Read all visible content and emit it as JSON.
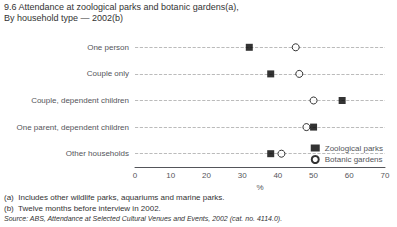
{
  "chart_data": {
    "type": "dot",
    "orientation": "horizontal",
    "title": "9.6 Attendance at zoological parks and botanic gardens(a),",
    "subtitle": "By household type — 2002(b)",
    "categories": [
      "One person",
      "Couple only",
      "Couple, dependent children",
      "One parent, dependent children",
      "Other households"
    ],
    "series": [
      {
        "name": "Zoological parks",
        "color": "#000000",
        "marker": "square",
        "values": [
          32,
          38,
          58,
          50,
          38
        ]
      },
      {
        "name": "Botanic gardens",
        "color": "#000000",
        "marker": "open_circle",
        "values": [
          45,
          46,
          50,
          48,
          41
        ]
      }
    ],
    "xlabel": "%",
    "xlim": [
      0,
      70
    ],
    "xticks": [
      0,
      10,
      20,
      30,
      40,
      50,
      60,
      70
    ],
    "grid": true,
    "legend": "lower right",
    "annotations": [
      "(a)  Includes other wildlife parks, aquariums and marine parks.",
      "(b)  Twelve months before interview in 2002.",
      "Source: ABS, Attendance at Selected Cultural Venues and Events, 2002 (cat. no. 4114.0)."
    ]
  }
}
